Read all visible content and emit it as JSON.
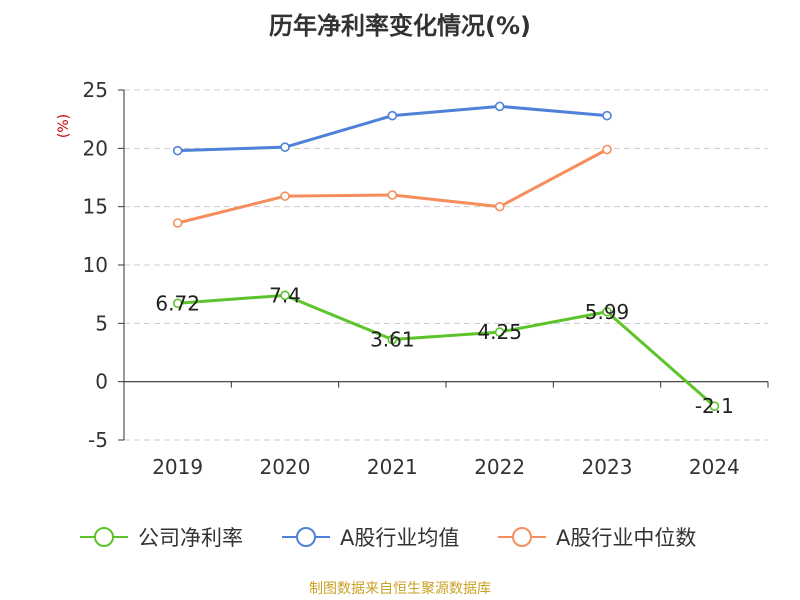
{
  "chart_data": {
    "type": "line",
    "title": "历年净利率变化情况(%)",
    "ylabel": "(%)",
    "xlabel": "",
    "categories": [
      "2019",
      "2020",
      "2021",
      "2022",
      "2023",
      "2024"
    ],
    "ylim": [
      -5,
      25
    ],
    "yticks": [
      -5,
      0,
      5,
      10,
      15,
      20,
      25
    ],
    "grid": true,
    "legend_position": "bottom",
    "series": [
      {
        "name": "公司净利率",
        "color": "#5cc42a",
        "values": [
          6.72,
          7.4,
          3.61,
          4.25,
          5.99,
          -2.1
        ],
        "labels": [
          "6.72",
          "7.4",
          "3.61",
          "4.25",
          "5.99",
          "-2.1"
        ]
      },
      {
        "name": "A股行业均值",
        "color": "#4f81d9",
        "values": [
          19.8,
          20.1,
          22.8,
          23.6,
          22.8,
          null
        ]
      },
      {
        "name": "A股行业中位数",
        "color": "#f58e5c",
        "values": [
          13.6,
          15.9,
          16.0,
          15.0,
          19.9,
          null
        ]
      }
    ]
  },
  "source": "制图数据来自恒生聚源数据库"
}
